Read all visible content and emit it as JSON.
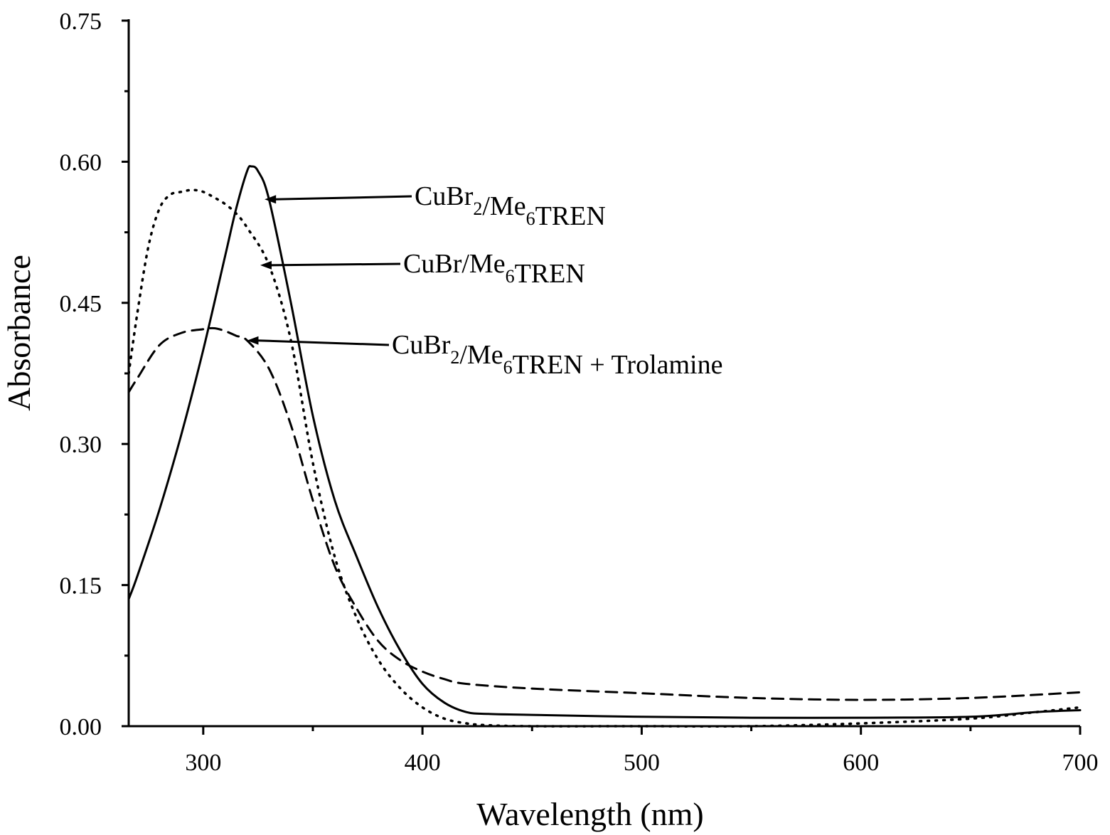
{
  "chart_data": {
    "type": "line",
    "title": "",
    "xlabel": "Wavelength (nm)",
    "ylabel": "Absorbance",
    "xlim": [
      266,
      700
    ],
    "ylim": [
      0,
      0.75
    ],
    "x_ticks": [
      300,
      400,
      500,
      600,
      700
    ],
    "x_tick_labels": [
      "300",
      "400",
      "500",
      "600",
      "700"
    ],
    "y_ticks": [
      0,
      0.15,
      0.3,
      0.45,
      0.6,
      0.75
    ],
    "y_tick_labels": [
      "0.00",
      "0.15",
      "0.30",
      "0.45",
      "0.60",
      "0.75"
    ],
    "grid": false,
    "series": [
      {
        "name": "CuBr2/Me6TREN",
        "style": "solid",
        "color": "#000000",
        "x": [
          266,
          270,
          280,
          290,
          300,
          310,
          315,
          320,
          322,
          325,
          330,
          340,
          350,
          360,
          370,
          380,
          390,
          400,
          410,
          420,
          430,
          450,
          500,
          550,
          600,
          650,
          680,
          700
        ],
        "y": [
          0.135,
          0.16,
          0.23,
          0.31,
          0.4,
          0.5,
          0.55,
          0.59,
          0.595,
          0.59,
          0.56,
          0.45,
          0.33,
          0.24,
          0.18,
          0.125,
          0.08,
          0.045,
          0.025,
          0.015,
          0.013,
          0.012,
          0.01,
          0.009,
          0.009,
          0.01,
          0.015,
          0.017
        ]
      },
      {
        "name": "CuBr/Me6TREN",
        "style": "dotted",
        "color": "#000000",
        "x": [
          266,
          270,
          275,
          280,
          285,
          290,
          295,
          300,
          305,
          310,
          315,
          320,
          330,
          340,
          350,
          360,
          370,
          380,
          390,
          400,
          410,
          420,
          430,
          450,
          500,
          550,
          600,
          650,
          680,
          700
        ],
        "y": [
          0.375,
          0.44,
          0.51,
          0.55,
          0.565,
          0.568,
          0.57,
          0.568,
          0.562,
          0.555,
          0.545,
          0.53,
          0.49,
          0.41,
          0.28,
          0.18,
          0.115,
          0.07,
          0.04,
          0.02,
          0.008,
          0.003,
          0.001,
          0.0,
          0.0,
          0.0,
          0.003,
          0.008,
          0.015,
          0.02
        ]
      },
      {
        "name": "CuBr2/Me6TREN + Trolamine",
        "style": "dashed",
        "color": "#000000",
        "x": [
          266,
          270,
          280,
          290,
          300,
          305,
          310,
          315,
          320,
          330,
          340,
          350,
          360,
          370,
          380,
          390,
          400,
          410,
          420,
          450,
          500,
          550,
          600,
          650,
          700
        ],
        "y": [
          0.355,
          0.37,
          0.405,
          0.418,
          0.422,
          0.423,
          0.42,
          0.415,
          0.41,
          0.38,
          0.32,
          0.24,
          0.17,
          0.125,
          0.09,
          0.07,
          0.058,
          0.05,
          0.045,
          0.04,
          0.035,
          0.03,
          0.028,
          0.03,
          0.036
        ]
      }
    ],
    "annotations": [
      {
        "text": "CuBr",
        "sub1": "2",
        "mid": "/Me",
        "sub2": "6",
        "tail": "TREN",
        "series": 0,
        "arrow_to": [
          328,
          0.56
        ]
      },
      {
        "text": "CuBr/Me",
        "sub1": "",
        "mid": "",
        "sub2": "6",
        "tail": "TREN",
        "series": 1,
        "arrow_to": [
          326,
          0.49
        ]
      },
      {
        "text": "CuBr",
        "sub1": "2",
        "mid": "/Me",
        "sub2": "6",
        "tail": "TREN + Trolamine",
        "series": 2,
        "arrow_to": [
          320,
          0.41
        ]
      }
    ]
  }
}
